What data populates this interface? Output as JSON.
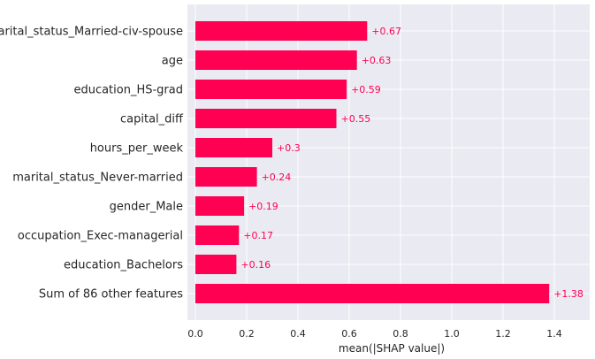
{
  "chart_data": {
    "type": "bar",
    "orientation": "horizontal",
    "categories": [
      "marital_status_Married-civ-spouse",
      "age",
      "education_HS-grad",
      "capital_diff",
      "hours_per_week",
      "marital_status_Never-married",
      "gender_Male",
      "occupation_Exec-managerial",
      "education_Bachelors",
      "Sum of 86 other features"
    ],
    "values": [
      0.67,
      0.63,
      0.59,
      0.55,
      0.3,
      0.24,
      0.19,
      0.17,
      0.16,
      1.38
    ],
    "value_labels": [
      "+0.67",
      "+0.63",
      "+0.59",
      "+0.55",
      "+0.3",
      "+0.24",
      "+0.19",
      "+0.17",
      "+0.16",
      "+1.38"
    ],
    "xlabel": "mean(|SHAP value|)",
    "xlim": [
      0,
      1.52
    ],
    "xticks": [
      0.0,
      0.2,
      0.4,
      0.6,
      0.8,
      1.0,
      1.2,
      1.4
    ],
    "xtick_labels": [
      "0.0",
      "0.2",
      "0.4",
      "0.6",
      "0.8",
      "1.0",
      "1.2",
      "1.4"
    ],
    "grid": true,
    "colors": {
      "bar": "#ff0052",
      "label": "#ff0052",
      "background": "#eaeaf2",
      "grid": "#ffffff"
    }
  }
}
